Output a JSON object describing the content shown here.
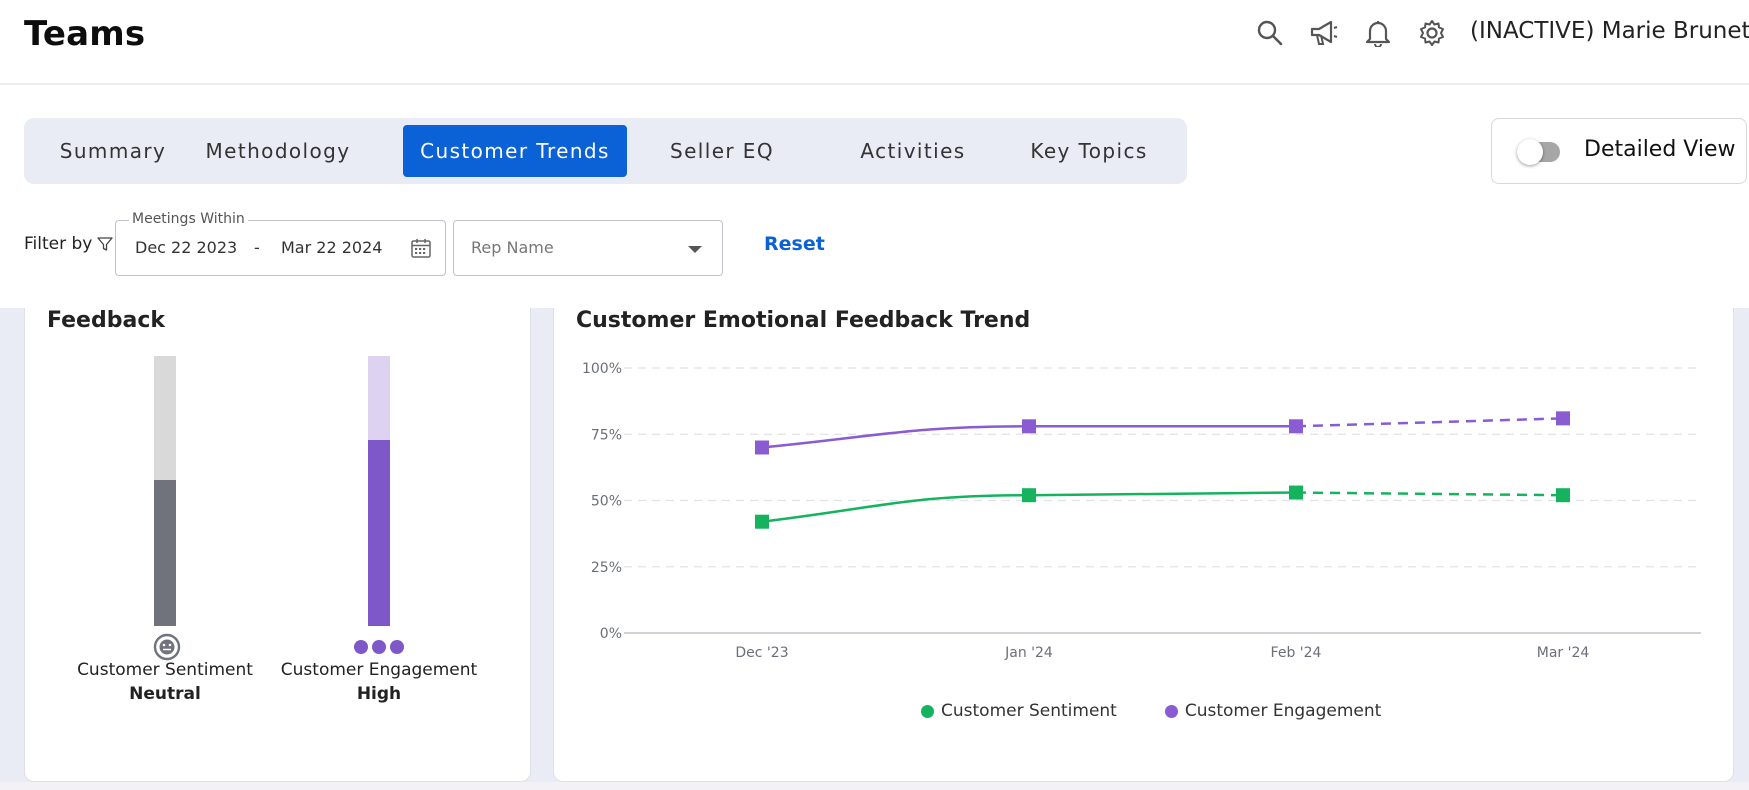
{
  "header": {
    "title": "Teams",
    "user_label": "(INACTIVE) Marie Brunet"
  },
  "tabs": [
    {
      "label": "Summary",
      "active": false
    },
    {
      "label": "Methodology",
      "active": false
    },
    {
      "label": "Customer Trends",
      "active": true
    },
    {
      "label": "Seller EQ",
      "active": false
    },
    {
      "label": "Activities",
      "active": false
    },
    {
      "label": "Key Topics",
      "active": false
    }
  ],
  "detailed_view": {
    "label": "Detailed View",
    "on": false
  },
  "filters": {
    "filter_by_label": "Filter by",
    "meetings_within_label": "Meetings Within",
    "start_date": "Dec 22 2023",
    "date_separator": "-",
    "end_date": "Mar 22 2024",
    "rep_name_placeholder": "Rep Name",
    "reset_label": "Reset"
  },
  "feedback": {
    "title": "Feedback",
    "sentiment": {
      "label": "Customer Sentiment",
      "value": "Neutral",
      "level": 0.54,
      "color": "#70737b",
      "track_color": "#d9d9d9"
    },
    "engagement": {
      "label": "Customer Engagement",
      "value": "High",
      "level": 0.69,
      "color": "#7e57c8",
      "track_color": "#ddd3f0"
    }
  },
  "trend": {
    "title": "Customer Emotional Feedback Trend"
  },
  "chart_data": {
    "type": "line",
    "title": "Customer Emotional Feedback Trend",
    "x": [
      "Dec '23",
      "Jan '24",
      "Feb '24",
      "Mar '24"
    ],
    "ylim": [
      0,
      100
    ],
    "yticks": [
      "100%",
      "75%",
      "50%",
      "25%",
      "0%"
    ],
    "ytick_values": [
      100,
      75,
      50,
      25,
      0
    ],
    "grid": true,
    "legend_position": "bottom",
    "series": [
      {
        "name": "Customer Sentiment",
        "color": "#16b35e",
        "values": [
          42,
          52,
          53,
          52
        ]
      },
      {
        "name": "Customer Engagement",
        "color": "#8a5bd1",
        "values": [
          70,
          78,
          78,
          81
        ]
      }
    ]
  }
}
